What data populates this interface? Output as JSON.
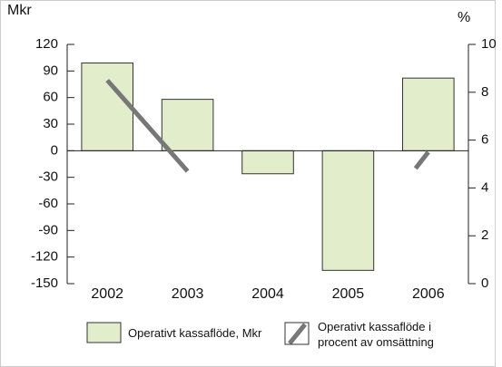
{
  "chart_data": {
    "type": "bar-line",
    "y_label": "Mkr",
    "y2_label": "%",
    "categories": [
      "2002",
      "2003",
      "2004",
      "2005",
      "2006"
    ],
    "series": [
      {
        "name": "Operativt kassaflöde, Mkr",
        "type": "bar",
        "color": "#e2eecb",
        "values": [
          99,
          58,
          -26,
          -135,
          82
        ]
      },
      {
        "name": "Operativt kassaflöde i procent av omsättning",
        "type": "line",
        "axis": "y2",
        "color": "#777777",
        "values": [
          8.5,
          4.7,
          null,
          null,
          5.5
        ]
      }
    ],
    "ylim": [
      -150,
      120
    ],
    "yticks": [
      -150,
      -120,
      -90,
      -60,
      -30,
      0,
      30,
      60,
      90,
      120
    ],
    "y2lim": [
      0,
      10
    ],
    "y2ticks": [
      0,
      2,
      4,
      6,
      8,
      10
    ]
  }
}
